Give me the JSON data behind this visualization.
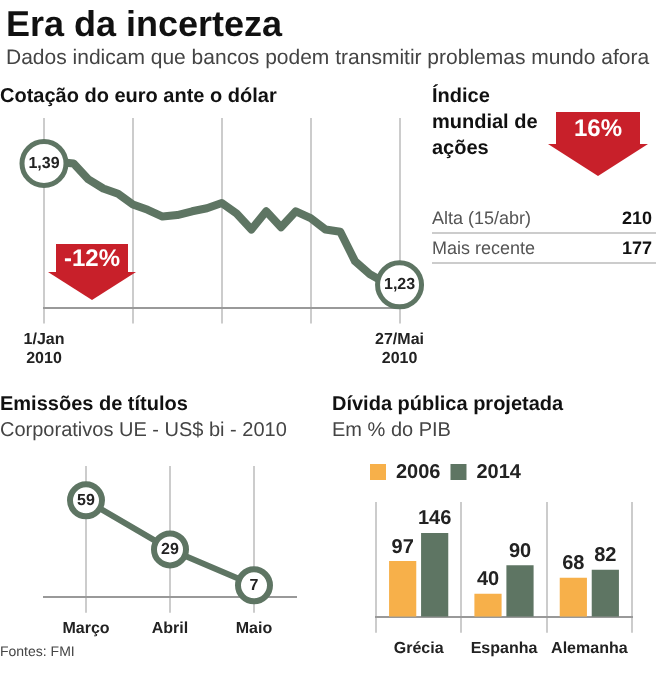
{
  "chart_data": [
    {
      "type": "other",
      "title": "Era da incerteza",
      "subtitle": "Dados indicam que bancos podem transmitir problemas mundo afora"
    },
    {
      "type": "line",
      "title": "Cotação do euro ante o dólar",
      "categories": [
        "1/Jan 2010",
        null,
        null,
        null,
        null,
        null,
        null,
        null,
        null,
        null,
        null,
        null,
        null,
        null,
        null,
        null,
        null,
        null,
        null,
        null,
        null,
        null,
        null,
        null,
        "27/Mai 2010"
      ],
      "series": [
        {
          "color": "#5e7563",
          "values": [
            1.39,
            1.392,
            1.39,
            1.369,
            1.357,
            1.35,
            1.336,
            1.329,
            1.32,
            1.322,
            1.327,
            1.331,
            1.338,
            1.324,
            1.303,
            1.327,
            1.306,
            1.327,
            1.318,
            1.303,
            1.3,
            1.261,
            1.244,
            1.233,
            1.23
          ],
          "value_labels": [
            "1,39",
            null,
            null,
            null,
            null,
            null,
            null,
            null,
            null,
            null,
            null,
            null,
            null,
            null,
            null,
            null,
            null,
            null,
            null,
            null,
            null,
            null,
            null,
            null,
            "1,23"
          ]
        }
      ],
      "annotations": [
        "-12%"
      ],
      "grid": "x",
      "tick_labels": "x"
    },
    {
      "type": "other",
      "title": "Índice mundial de ações",
      "annotations": [
        "16%",
        "Alta (15/abr)",
        "210",
        "Mais recente",
        "177"
      ]
    },
    {
      "type": "line",
      "title": "Emissões de títulos",
      "subtitle": "Corporativos UE - US$ bi - 2010",
      "categories": [
        "Março",
        "Abril",
        "Maio"
      ],
      "series": [
        {
          "color": "#5e7563",
          "values": [
            59,
            29,
            7
          ]
        }
      ],
      "data_labels": true,
      "marker": "circle",
      "grid": "x",
      "tick_labels": "x",
      "annotations": [
        "Fontes: FMI"
      ]
    },
    {
      "type": "bar",
      "title": "Dívida pública projetada",
      "subtitle": "Em % do PIB",
      "categories": [
        "Grécia",
        "Espanha",
        "Alemanha"
      ],
      "series": [
        {
          "name": "2006",
          "color": "#f7b04a",
          "values": [
            97,
            40,
            68
          ]
        },
        {
          "name": "2014",
          "color": "#5e7563",
          "values": [
            146,
            90,
            82
          ]
        }
      ],
      "data_labels": true,
      "grid": "x",
      "tick_labels": "x",
      "legend": "top left"
    }
  ]
}
